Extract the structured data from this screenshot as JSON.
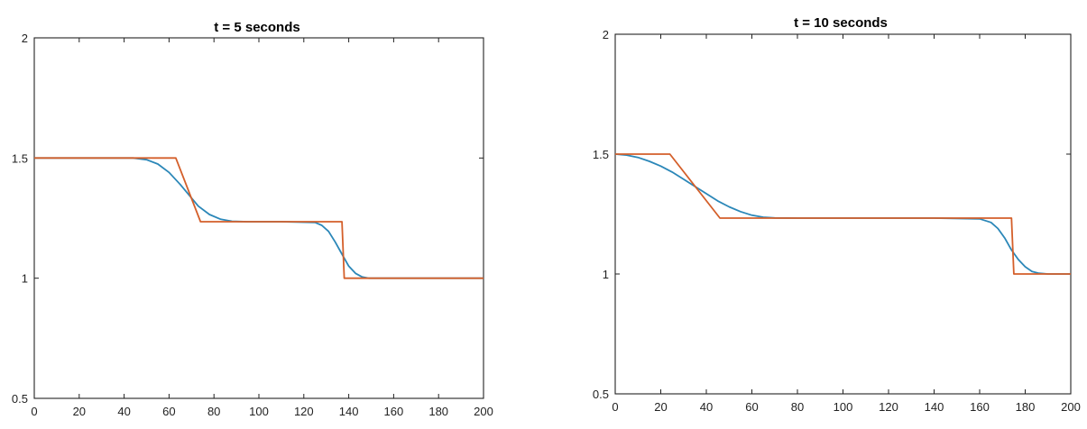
{
  "chart_data": [
    {
      "type": "line",
      "title": "t = 5 seconds",
      "xlabel": "",
      "ylabel": "",
      "xlim": [
        0,
        200
      ],
      "ylim": [
        0.5,
        2
      ],
      "xticks": [
        "0",
        "20",
        "40",
        "60",
        "80",
        "100",
        "120",
        "140",
        "160",
        "180",
        "200"
      ],
      "yticks": [
        "0.5",
        "1",
        "1.5",
        "2"
      ],
      "grid": false,
      "series": [
        {
          "color": "#2b87b8",
          "x": [
            0,
            44,
            50,
            55,
            60,
            65,
            69,
            73,
            78,
            83,
            88,
            95,
            110,
            125,
            128,
            131,
            134,
            137,
            140,
            143,
            146,
            149,
            152,
            160,
            200
          ],
          "y": [
            1.5,
            1.5,
            1.493,
            1.475,
            1.44,
            1.39,
            1.345,
            1.3,
            1.265,
            1.245,
            1.237,
            1.235,
            1.235,
            1.232,
            1.22,
            1.195,
            1.15,
            1.1,
            1.05,
            1.02,
            1.005,
            1.0,
            1.0,
            1.0,
            1.0
          ]
        },
        {
          "color": "#d45f2a",
          "x": [
            0,
            63,
            74,
            137,
            138,
            200
          ],
          "y": [
            1.5,
            1.5,
            1.235,
            1.235,
            1.0,
            1.0
          ]
        }
      ]
    },
    {
      "type": "line",
      "title": "t = 10 seconds",
      "xlabel": "",
      "ylabel": "",
      "xlim": [
        0,
        200
      ],
      "ylim": [
        0.5,
        2
      ],
      "xticks": [
        "0",
        "20",
        "40",
        "60",
        "80",
        "100",
        "120",
        "140",
        "160",
        "180",
        "200"
      ],
      "yticks": [
        "0.5",
        "1",
        "1.5",
        "2"
      ],
      "grid": false,
      "series": [
        {
          "color": "#2b87b8",
          "x": [
            0,
            5,
            10,
            15,
            20,
            25,
            30,
            35,
            40,
            45,
            50,
            55,
            60,
            65,
            70,
            80,
            100,
            140,
            160,
            165,
            168,
            171,
            174,
            177,
            180,
            183,
            186,
            190,
            200
          ],
          "y": [
            1.5,
            1.496,
            1.486,
            1.47,
            1.45,
            1.425,
            1.395,
            1.365,
            1.335,
            1.305,
            1.28,
            1.26,
            1.245,
            1.237,
            1.234,
            1.233,
            1.233,
            1.233,
            1.23,
            1.215,
            1.19,
            1.15,
            1.1,
            1.06,
            1.03,
            1.01,
            1.003,
            1.0,
            1.0
          ]
        },
        {
          "color": "#d45f2a",
          "x": [
            0,
            24,
            46,
            174,
            175,
            200
          ],
          "y": [
            1.5,
            1.5,
            1.233,
            1.233,
            1.0,
            1.0
          ]
        }
      ]
    }
  ]
}
